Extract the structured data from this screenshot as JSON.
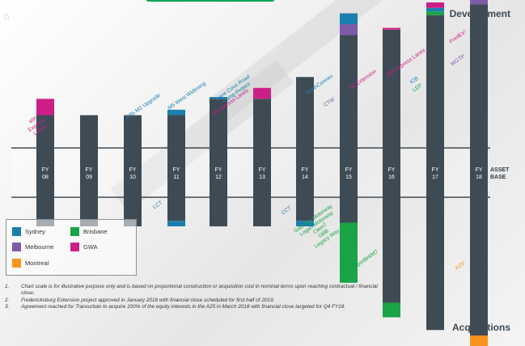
{
  "headings": {
    "development": "Development",
    "acquisitions": "Acquisitions"
  },
  "legend": [
    {
      "label": "Sydney",
      "color": "#1a7fae"
    },
    {
      "label": "Brisbane",
      "color": "#1aa347"
    },
    {
      "label": "Melbourne",
      "color": "#7d5ba6"
    },
    {
      "label": "GWA",
      "color": "#cc1f86"
    },
    {
      "label": "Montreal",
      "color": "#f7941d"
    }
  ],
  "asset_base_label": [
    "ASSET",
    "BASE"
  ],
  "colors": {
    "base": "#3e4b55",
    "Sydney": "#1a7fae",
    "Brisbane": "#1aa347",
    "Melbourne": "#7d5ba6",
    "GWA": "#cc1f86",
    "Montreal": "#f7941d"
  },
  "chart_data": {
    "type": "bar",
    "stacked": true,
    "note": "Chart scale is for illustrative purpose only",
    "categories": [
      [
        "FY",
        "08"
      ],
      [
        "FY",
        "09"
      ],
      [
        "FY",
        "10"
      ],
      [
        "FY",
        "11"
      ],
      [
        "FY",
        "12"
      ],
      [
        "FY",
        "13"
      ],
      [
        "FY",
        "14"
      ],
      [
        "FY",
        "15"
      ],
      [
        "FY",
        "16"
      ],
      [
        "FY",
        "17"
      ],
      [
        "FY",
        "18"
      ]
    ],
    "asset_base_up": [
      18,
      18,
      18,
      18,
      27,
      27,
      39,
      62,
      65,
      73,
      79
    ],
    "asset_base_down": [
      16,
      16,
      16,
      13,
      16,
      16,
      13,
      14,
      58,
      73,
      76
    ],
    "development": [
      {
        "year": 0,
        "region": "GWA",
        "value": 9,
        "label": [
          "495",
          "Express",
          "Lanes"
        ],
        "label_color": "GWA"
      },
      {
        "year": 3,
        "region": "Sydney",
        "value": 3,
        "label": [
          "Hills M2 Upgrade"
        ],
        "label_color": "Sydney"
      },
      {
        "year": 4,
        "region": "Sydney",
        "value": 1,
        "label": [
          "M5 West Widening"
        ],
        "label_color": "Sydney"
      },
      {
        "year": 5,
        "region": "GWA",
        "value": 6,
        "label": [
          "95 Express Lanes"
        ],
        "label_color": "GWA"
      },
      {
        "year": 5,
        "region": "Sydney",
        "value": 0,
        "label": [
          "Lane Cove Road",
          "Ramp Project"
        ],
        "label_color": "Sydney"
      },
      {
        "year": 7,
        "region": "Melbourne",
        "value": 6,
        "label": [
          "CTW"
        ],
        "label_color": "Melbourne"
      },
      {
        "year": 7,
        "region": "Sydney",
        "value": 6,
        "label": [
          "NorthConnex"
        ],
        "label_color": "Sydney"
      },
      {
        "year": 8,
        "region": "GWA",
        "value": 1,
        "label": [
          "95 Extension"
        ],
        "label_color": "GWA"
      },
      {
        "year": 9,
        "region": "Brisbane",
        "value": 2,
        "label": [
          "LEP"
        ],
        "label_color": "Brisbane"
      },
      {
        "year": 9,
        "region": "Sydney",
        "value": 2,
        "label": [
          "ICB"
        ],
        "label_color": "Sydney"
      },
      {
        "year": 9,
        "region": "GWA",
        "value": 3,
        "label": [
          "395 Express Lanes"
        ],
        "label_color": "GWA"
      },
      {
        "year": 10,
        "region": "Melbourne",
        "value": 23,
        "label": [
          "WGTP"
        ],
        "label_color": "Melbourne"
      },
      {
        "year": 10,
        "region": "GWA",
        "value": 5,
        "label": [
          "FredEx²"
        ],
        "label_color": "GWA"
      }
    ],
    "acquisitions": [
      {
        "year": 3,
        "region": "Sydney",
        "value": 3,
        "label": [
          "LCT"
        ],
        "label_color": "Sydney"
      },
      {
        "year": 6,
        "region": "Sydney",
        "value": 3,
        "label": [
          "CCT"
        ],
        "label_color": "Sydney"
      },
      {
        "year": 7,
        "region": "Brisbane",
        "value": 33,
        "label": [
          "Gateway Motorway",
          "Logan Motorway",
          "Clem7",
          "GBB",
          "Legacy Way"
        ],
        "label_color": "Brisbane"
      },
      {
        "year": 8,
        "region": "Brisbane",
        "value": 8,
        "label": [
          "AirportlinkM7"
        ],
        "label_color": "Brisbane"
      },
      {
        "year": 10,
        "region": "Montreal",
        "value": 7,
        "label": [
          "A25³"
        ],
        "label_color": "Montreal"
      }
    ]
  },
  "footnotes": [
    {
      "num": "1.",
      "text": "Chart scale is for illustrative purpose only and is based on proportional construction or acquisition cost in nominal terms upon reaching contractual / financial close."
    },
    {
      "num": "2.",
      "text": "Fredericksburg Extension project approved in January 2018 with financial close scheduled for first half of 2019."
    },
    {
      "num": "3.",
      "text": "Agreement reached for Transurban to acquire 100% of the equity interests in the A25 in March 2018 with financial close targeted for Q4 FY18."
    }
  ]
}
